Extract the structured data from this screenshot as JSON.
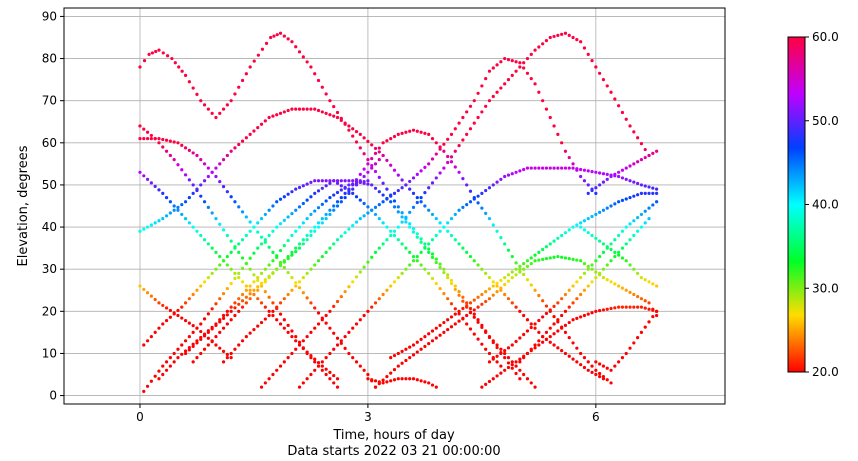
{
  "chart_data": {
    "type": "scatter",
    "title": "",
    "xlabel": "Time, hours of day",
    "xlabel_line2": "Data starts 2022 03 21 00:00:00",
    "ylabel": "Elevation, degrees",
    "xlim": [
      -1.0,
      7.7
    ],
    "ylim": [
      -2,
      92
    ],
    "xticks": [
      0,
      3,
      6
    ],
    "yticks": [
      0,
      10,
      20,
      30,
      40,
      50,
      60,
      70,
      80,
      90
    ],
    "grid": true,
    "colorbar": {
      "min": 20.0,
      "max": 60.0,
      "ticks": [
        "20.0",
        "30.0",
        "40.0",
        "50.0",
        "60.0"
      ],
      "colormap": "gist_rainbow-like (red-yellow-green-cyan-blue-magenta-red)"
    },
    "point_interval_hours": 0.05,
    "series": [
      {
        "values": [
          [
            0,
            78
          ],
          [
            0.12,
            81
          ],
          [
            0.25,
            82
          ],
          [
            0.42,
            80
          ],
          [
            0.6,
            76
          ],
          [
            0.8,
            70
          ],
          [
            1.0,
            66
          ],
          [
            1.2,
            70
          ],
          [
            1.45,
            78
          ],
          [
            1.72,
            85
          ],
          [
            1.85,
            86
          ],
          [
            2.0,
            84
          ],
          [
            2.25,
            78
          ],
          [
            2.5,
            70
          ],
          [
            2.75,
            63
          ],
          [
            3.0,
            56
          ],
          [
            3.25,
            49
          ],
          [
            3.5,
            42
          ],
          [
            3.75,
            36
          ],
          [
            4.0,
            30
          ],
          [
            4.3,
            22
          ],
          [
            4.6,
            14
          ],
          [
            4.9,
            8
          ],
          [
            5.2,
            2
          ]
        ]
      },
      {
        "values": [
          [
            0,
            64
          ],
          [
            0.2,
            61
          ],
          [
            0.45,
            56
          ],
          [
            0.7,
            50
          ],
          [
            1.0,
            42
          ],
          [
            1.3,
            34
          ],
          [
            1.6,
            26
          ],
          [
            1.9,
            18
          ],
          [
            2.2,
            10
          ],
          [
            2.5,
            4
          ],
          [
            2.6,
            2
          ]
        ]
      },
      {
        "values": [
          [
            0,
            61
          ],
          [
            0.25,
            61
          ],
          [
            0.5,
            60
          ],
          [
            0.75,
            57
          ],
          [
            1.0,
            52
          ],
          [
            1.25,
            46
          ],
          [
            1.5,
            40
          ],
          [
            1.75,
            34
          ],
          [
            2.0,
            28
          ],
          [
            2.25,
            22
          ],
          [
            2.5,
            16
          ],
          [
            2.75,
            10
          ],
          [
            3.0,
            5
          ],
          [
            3.1,
            2
          ]
        ]
      },
      {
        "values": [
          [
            0,
            53
          ],
          [
            0.3,
            48
          ],
          [
            0.6,
            42
          ],
          [
            0.9,
            36
          ],
          [
            1.2,
            30
          ],
          [
            1.5,
            24
          ],
          [
            1.8,
            18
          ],
          [
            2.1,
            12
          ],
          [
            2.4,
            7
          ],
          [
            2.6,
            4
          ]
        ]
      },
      {
        "values": [
          [
            0,
            39
          ],
          [
            0.3,
            42
          ],
          [
            0.6,
            46
          ],
          [
            0.9,
            52
          ],
          [
            1.2,
            58
          ],
          [
            1.45,
            62
          ],
          [
            1.7,
            66
          ],
          [
            2.0,
            68
          ],
          [
            2.3,
            68
          ],
          [
            2.6,
            66
          ],
          [
            2.9,
            62
          ],
          [
            3.2,
            57
          ],
          [
            3.5,
            50
          ],
          [
            3.8,
            44
          ],
          [
            4.1,
            38
          ],
          [
            4.4,
            32
          ],
          [
            4.7,
            26
          ],
          [
            5.0,
            20
          ],
          [
            5.3,
            14
          ],
          [
            5.6,
            10
          ],
          [
            5.9,
            6
          ],
          [
            6.1,
            4
          ]
        ]
      },
      {
        "values": [
          [
            0,
            26
          ],
          [
            0.25,
            22
          ],
          [
            0.5,
            19
          ],
          [
            0.75,
            16
          ],
          [
            1.0,
            12
          ],
          [
            1.2,
            9
          ]
        ]
      },
      {
        "values": [
          [
            0.05,
            1
          ],
          [
            0.3,
            7
          ],
          [
            0.55,
            12
          ],
          [
            0.8,
            17
          ],
          [
            1.05,
            23
          ],
          [
            1.3,
            29
          ],
          [
            1.55,
            35
          ],
          [
            1.8,
            40
          ],
          [
            2.05,
            44
          ],
          [
            2.3,
            48
          ],
          [
            2.55,
            51
          ],
          [
            2.8,
            51
          ],
          [
            3.05,
            50
          ],
          [
            3.3,
            46
          ],
          [
            3.55,
            40
          ],
          [
            3.8,
            34
          ],
          [
            4.05,
            28
          ],
          [
            4.3,
            21
          ],
          [
            4.55,
            15
          ],
          [
            4.8,
            9
          ],
          [
            5.0,
            4
          ]
        ]
      },
      {
        "values": [
          [
            0.05,
            12
          ],
          [
            0.3,
            17
          ],
          [
            0.55,
            21
          ],
          [
            0.8,
            26
          ],
          [
            1.05,
            31
          ],
          [
            1.3,
            36
          ],
          [
            1.55,
            41
          ],
          [
            1.8,
            46
          ],
          [
            2.05,
            49
          ],
          [
            2.3,
            51
          ],
          [
            2.55,
            51
          ],
          [
            2.8,
            48
          ],
          [
            3.05,
            44
          ],
          [
            3.3,
            39
          ],
          [
            3.55,
            34
          ],
          [
            3.8,
            29
          ],
          [
            4.05,
            23
          ],
          [
            4.3,
            17
          ],
          [
            4.55,
            11
          ],
          [
            4.75,
            7
          ]
        ]
      },
      {
        "values": [
          [
            0.25,
            4
          ],
          [
            0.5,
            9
          ],
          [
            0.75,
            13
          ],
          [
            1.0,
            17
          ],
          [
            1.25,
            22
          ],
          [
            1.5,
            27
          ],
          [
            1.75,
            32
          ],
          [
            2.0,
            38
          ],
          [
            2.25,
            43
          ],
          [
            2.5,
            47
          ],
          [
            2.75,
            50
          ],
          [
            3.0,
            51
          ]
        ]
      },
      {
        "values": [
          [
            0.6,
            10
          ],
          [
            0.9,
            15
          ],
          [
            1.2,
            20
          ],
          [
            1.5,
            25
          ],
          [
            1.8,
            30
          ],
          [
            2.1,
            35
          ],
          [
            2.4,
            41
          ],
          [
            2.7,
            47
          ],
          [
            3.0,
            53
          ],
          [
            3.2,
            57
          ]
        ]
      },
      {
        "values": [
          [
            0.7,
            8
          ],
          [
            1.0,
            14
          ],
          [
            1.3,
            20
          ],
          [
            1.6,
            26
          ],
          [
            1.9,
            32
          ],
          [
            2.2,
            38
          ],
          [
            2.5,
            44
          ],
          [
            2.8,
            50
          ],
          [
            3.0,
            55
          ],
          [
            3.2,
            60
          ],
          [
            3.4,
            62
          ],
          [
            3.6,
            63
          ],
          [
            3.8,
            62
          ],
          [
            4.0,
            58
          ],
          [
            4.2,
            53
          ],
          [
            4.4,
            47
          ],
          [
            4.6,
            42
          ],
          [
            4.8,
            36
          ],
          [
            5.0,
            30
          ],
          [
            5.2,
            25
          ],
          [
            5.4,
            20
          ],
          [
            5.6,
            15
          ],
          [
            5.8,
            10
          ],
          [
            6.0,
            6
          ],
          [
            6.2,
            3
          ]
        ]
      },
      {
        "values": [
          [
            1.1,
            8
          ],
          [
            1.4,
            14
          ],
          [
            1.7,
            19
          ],
          [
            2.0,
            25
          ],
          [
            2.3,
            31
          ],
          [
            2.6,
            37
          ],
          [
            2.9,
            42
          ],
          [
            3.2,
            46
          ],
          [
            3.5,
            50
          ],
          [
            3.8,
            55
          ],
          [
            4.1,
            62
          ],
          [
            4.4,
            70
          ],
          [
            4.6,
            77
          ],
          [
            4.8,
            80
          ],
          [
            5.0,
            79
          ],
          [
            5.2,
            74
          ],
          [
            5.4,
            66
          ],
          [
            5.6,
            58
          ],
          [
            5.8,
            52
          ],
          [
            6.0,
            48
          ]
        ]
      },
      {
        "values": [
          [
            1.6,
            2
          ],
          [
            1.9,
            8
          ],
          [
            2.2,
            14
          ],
          [
            2.5,
            20
          ],
          [
            2.8,
            27
          ],
          [
            3.1,
            34
          ],
          [
            3.4,
            40
          ],
          [
            3.7,
            47
          ],
          [
            4.0,
            54
          ],
          [
            4.3,
            62
          ],
          [
            4.6,
            70
          ],
          [
            4.9,
            76
          ],
          [
            5.2,
            82
          ],
          [
            5.4,
            85
          ],
          [
            5.6,
            86
          ],
          [
            5.8,
            84
          ],
          [
            6.0,
            78
          ],
          [
            6.2,
            72
          ],
          [
            6.45,
            64
          ],
          [
            6.7,
            57
          ]
        ]
      },
      {
        "values": [
          [
            2.1,
            2
          ],
          [
            2.4,
            8
          ],
          [
            2.7,
            14
          ],
          [
            3.0,
            20
          ],
          [
            3.3,
            26
          ],
          [
            3.6,
            32
          ],
          [
            3.9,
            38
          ],
          [
            4.2,
            44
          ],
          [
            4.5,
            48
          ],
          [
            4.8,
            52
          ],
          [
            5.1,
            54
          ],
          [
            5.4,
            54
          ],
          [
            5.7,
            54
          ],
          [
            6.0,
            53
          ],
          [
            6.3,
            52
          ],
          [
            6.6,
            50
          ],
          [
            6.8,
            49
          ]
        ]
      },
      {
        "values": [
          [
            3.0,
            4
          ],
          [
            3.2,
            3
          ],
          [
            3.4,
            4
          ],
          [
            3.6,
            4
          ],
          [
            3.8,
            3
          ],
          [
            3.9,
            2
          ]
        ]
      },
      {
        "values": [
          [
            3.1,
            2
          ],
          [
            3.4,
            7
          ],
          [
            3.7,
            11
          ],
          [
            4.0,
            15
          ],
          [
            4.3,
            19
          ],
          [
            4.6,
            23
          ],
          [
            4.9,
            28
          ],
          [
            5.2,
            32
          ],
          [
            5.5,
            33
          ],
          [
            5.8,
            32
          ],
          [
            6.1,
            28
          ],
          [
            6.4,
            25
          ],
          [
            6.7,
            22
          ],
          [
            6.8,
            19
          ]
        ]
      },
      {
        "values": [
          [
            3.3,
            9
          ],
          [
            3.6,
            12
          ],
          [
            3.9,
            16
          ],
          [
            4.2,
            20
          ],
          [
            4.5,
            24
          ],
          [
            4.8,
            28
          ],
          [
            5.1,
            32
          ],
          [
            5.4,
            36
          ],
          [
            5.7,
            40
          ],
          [
            6.0,
            43
          ],
          [
            6.3,
            46
          ],
          [
            6.6,
            48
          ],
          [
            6.8,
            48
          ]
        ]
      },
      {
        "values": [
          [
            4.5,
            2
          ],
          [
            4.8,
            6
          ],
          [
            5.1,
            10
          ],
          [
            5.4,
            14
          ],
          [
            5.7,
            18
          ],
          [
            6.0,
            20
          ],
          [
            6.3,
            21
          ],
          [
            6.6,
            21
          ],
          [
            6.8,
            20
          ]
        ]
      },
      {
        "values": [
          [
            4.6,
            8
          ],
          [
            4.9,
            12
          ],
          [
            5.2,
            17
          ],
          [
            5.5,
            22
          ],
          [
            5.8,
            28
          ],
          [
            6.1,
            34
          ],
          [
            6.4,
            40
          ],
          [
            6.6,
            43
          ],
          [
            6.8,
            46
          ]
        ]
      },
      {
        "values": [
          [
            5.0,
            8
          ],
          [
            5.3,
            14
          ],
          [
            5.6,
            20
          ],
          [
            5.9,
            26
          ],
          [
            6.2,
            32
          ],
          [
            6.5,
            38
          ],
          [
            6.7,
            42
          ]
        ]
      },
      {
        "values": [
          [
            5.8,
            40
          ],
          [
            6.1,
            36
          ],
          [
            6.4,
            32
          ],
          [
            6.6,
            28
          ],
          [
            6.8,
            26
          ]
        ]
      },
      {
        "values": [
          [
            5.9,
            48
          ],
          [
            6.2,
            52
          ],
          [
            6.5,
            55
          ],
          [
            6.7,
            57
          ],
          [
            6.8,
            58
          ]
        ]
      },
      {
        "values": [
          [
            6.0,
            8
          ],
          [
            6.2,
            6
          ],
          [
            6.4,
            10
          ],
          [
            6.6,
            15
          ],
          [
            6.8,
            20
          ]
        ]
      }
    ]
  }
}
